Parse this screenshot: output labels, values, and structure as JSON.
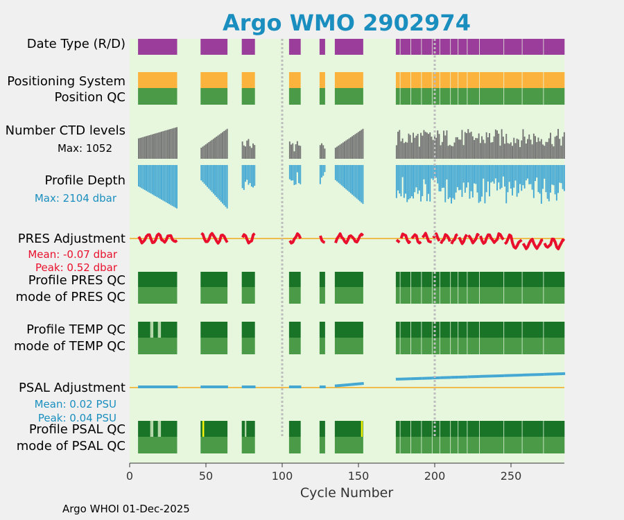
{
  "chart_data": {
    "type": "argo-qc-timeline",
    "title": "Argo WMO 2902974",
    "xlabel": "Cycle Number",
    "xlim": [
      0,
      285
    ],
    "xticks": [
      0,
      50,
      100,
      150,
      200,
      250
    ],
    "vlines": [
      100,
      200
    ],
    "gaps": [
      [
        0,
        5
      ],
      [
        32,
        46
      ],
      [
        65,
        73
      ],
      [
        83,
        104
      ],
      [
        113,
        124
      ],
      [
        129,
        134
      ],
      [
        154,
        174
      ]
    ],
    "labels": {
      "date_type": "Date Type (R/D)",
      "positioning_system": "Positioning System",
      "position_qc": "Position QC",
      "ctd_levels": "Number CTD levels",
      "ctd_max": "Max: 1052",
      "profile_depth": "Profile Depth",
      "depth_max": "Max: 2104 dbar",
      "pres_adjustment": "PRES Adjustment",
      "pres_mean": "Mean: -0.07 dbar",
      "pres_peak": "Peak: 0.52 dbar",
      "profile_pres_qc": "Profile PRES QC",
      "mode_pres_qc": "mode of PRES QC",
      "profile_temp_qc": "Profile TEMP QC",
      "mode_temp_qc": "mode of TEMP QC",
      "psal_adjustment": "PSAL Adjustment",
      "psal_mean": "Mean: 0.02 PSU",
      "psal_peak": "Peak: 0.04 PSU",
      "profile_psal_qc": "Profile PSAL QC",
      "mode_psal_qc": "mode of PSAL QC"
    },
    "ctd_levels_max": 1052,
    "profile_depth_max_dbar": 2104,
    "pres_adjustment": {
      "mean": -0.07,
      "peak": 0.52,
      "units": "dbar"
    },
    "psal_adjustment": {
      "mean": 0.02,
      "peak": 0.04,
      "units": "PSU"
    },
    "temp_qc_light_cycles": [
      14,
      15,
      19,
      20
    ],
    "psal_qc_light_cycles": [
      14,
      15,
      19,
      20,
      76
    ],
    "psal_qc_yellow_cycles": [
      48,
      152
    ],
    "colors": {
      "title": "#1a8fbf",
      "plot_bg": "#e6f7de",
      "date_type": "#9b3d9b",
      "positioning": "#fbb33e",
      "qc_light": "#4a9a48",
      "qc_dark": "#1a7428",
      "qc_pale": "#b9d9ae",
      "qc_yellow": "#f6f20a",
      "ctd": "#737373",
      "depth": "#45a8d3",
      "pres_line": "#e8102c",
      "psal_line": "#45a8d3",
      "zero_line": "#f4a81c",
      "pres_text": "#e8102c",
      "depth_text": "#1a8fbf",
      "psal_text": "#1a8fbf"
    }
  },
  "footer": "Argo WHOI 01-Dec-2025"
}
